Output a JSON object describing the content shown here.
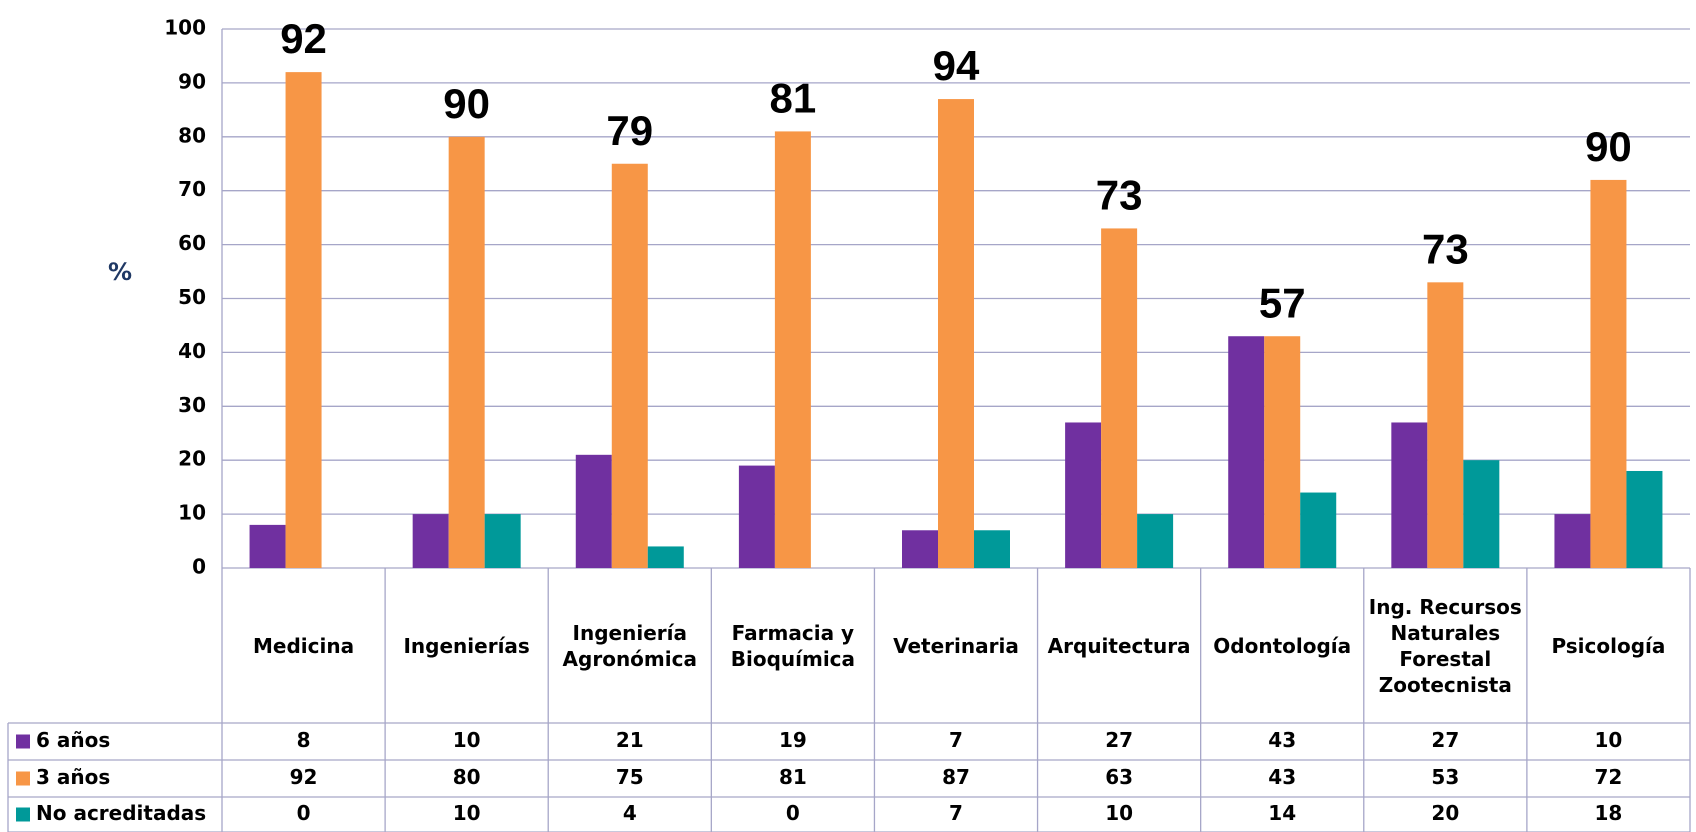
{
  "chart_data": {
    "type": "bar",
    "y_label": "%",
    "categories": [
      "Medicina",
      "Ingenierías",
      "Ingeniería Agronómica",
      "Farmacia y Bioquímica",
      "Veterinaria",
      "Arquitectura",
      "Odontología",
      "Ing. Recursos Naturales Forestal Zootecnista",
      "Psicología"
    ],
    "series": [
      {
        "name": "6 años",
        "color": "#7030a0",
        "values": [
          8,
          10,
          21,
          19,
          7,
          27,
          43,
          27,
          10
        ]
      },
      {
        "name": "3 años",
        "color": "#f79646",
        "values": [
          92,
          80,
          75,
          81,
          87,
          63,
          43,
          53,
          72
        ]
      },
      {
        "name": "No acreditadas",
        "color": "#009999",
        "values": [
          0,
          10,
          4,
          0,
          7,
          10,
          14,
          20,
          18
        ]
      }
    ],
    "annotations": [
      92,
      90,
      79,
      81,
      94,
      73,
      57,
      73,
      90
    ],
    "ylim": [
      0,
      100
    ],
    "yticks": [
      0,
      10,
      20,
      30,
      40,
      50,
      60,
      70,
      80,
      90,
      100
    ],
    "grid": true,
    "data_table": true
  }
}
